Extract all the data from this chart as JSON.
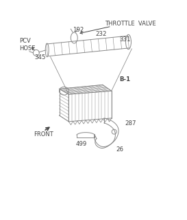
{
  "bg_color": "#ffffff",
  "line_color": "#888888",
  "dark_color": "#444444",
  "labels": {
    "pcv_hose": "PCV\nHOSE",
    "throttle_valve": "THROTTLE  VALVE",
    "front": "FRONT",
    "b1": "B-1",
    "n192": "192",
    "n232": "232",
    "n331": "331",
    "n345": "345",
    "n287": "287",
    "n26": "26",
    "n499": "499"
  },
  "font_size_label": 6.0,
  "font_size_num": 6.2,
  "lw": 0.7
}
